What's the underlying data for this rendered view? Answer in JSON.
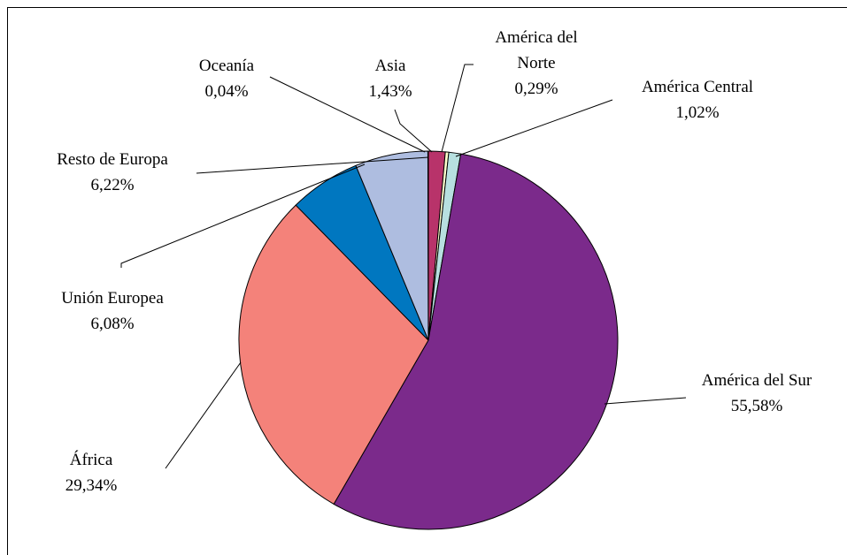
{
  "chart_data": {
    "type": "pie",
    "categories": [
      "Asia",
      "América del Norte",
      "América Central",
      "América del Sur",
      "África",
      "Unión Europea",
      "Resto de Europa",
      "Oceanía"
    ],
    "values": [
      1.43,
      0.29,
      1.02,
      55.58,
      29.34,
      6.08,
      6.22,
      0.04
    ],
    "value_labels": [
      "1,43%",
      "0,29%",
      "1,02%",
      "55,58%",
      "29,34%",
      "6,08%",
      "6,22%",
      "0,04%"
    ],
    "colors": [
      "#b8336a",
      "#ffffcc",
      "#b7e0e0",
      "#7b2a8b",
      "#f4827a",
      "#0077c0",
      "#aebde0",
      "#444444"
    ]
  }
}
